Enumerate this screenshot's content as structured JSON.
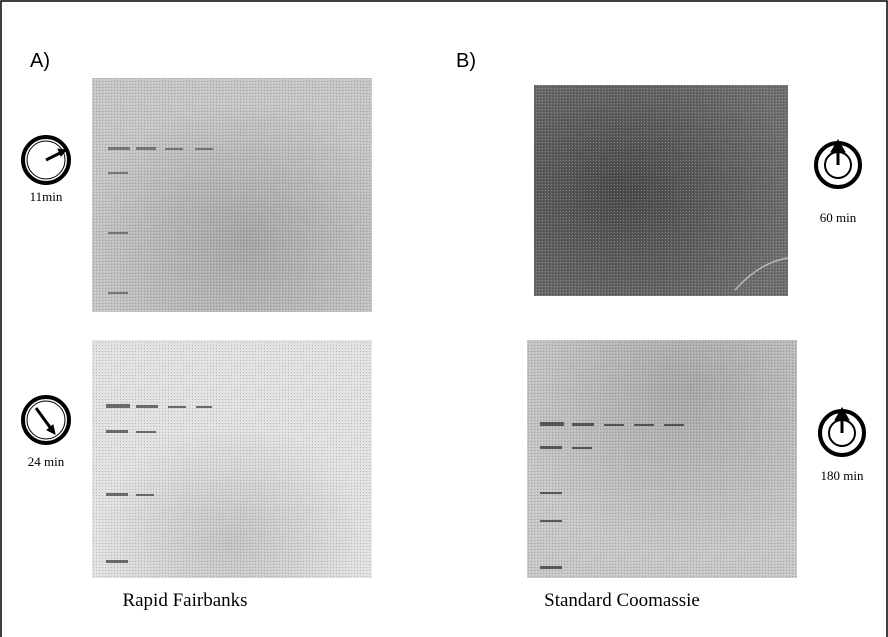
{
  "panels": [
    {
      "label": "A)",
      "caption": "Rapid Fairbanks",
      "gels": [
        {
          "time": "11min"
        },
        {
          "time": "24 min"
        }
      ]
    },
    {
      "label": "B)",
      "caption": "Standard Coomassie",
      "gels": [
        {
          "time": "60 min"
        },
        {
          "time": "180 min"
        }
      ]
    }
  ]
}
